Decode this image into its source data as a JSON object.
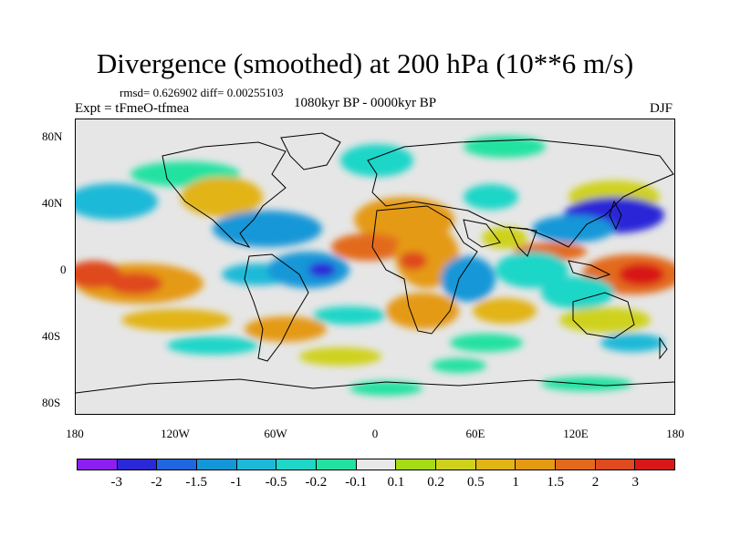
{
  "title": "Divergence (smoothed) at 200 hPa (10**6 m/s)",
  "stats": "rmsd= 0.626902 diff= 0.00255103",
  "experiment": "Expt = tFmeO-tfmea",
  "period": "1080kyr BP - 0000kyr BP",
  "season": "DJF",
  "lat_ticks": [
    "80N",
    "40N",
    "0",
    "40S",
    "80S"
  ],
  "lon_ticks": [
    "180",
    "120W",
    "60W",
    "0",
    "60E",
    "120E",
    "180"
  ],
  "colorbar": {
    "colors": [
      "#8a1ff0",
      "#2b28d8",
      "#1f66e0",
      "#1497d8",
      "#1cb9d8",
      "#1fd6c8",
      "#22e2a0",
      "#e8e8e8",
      "#a6dc14",
      "#cfd21b",
      "#e2b414",
      "#e59a14",
      "#e36a1c",
      "#df4a1e",
      "#d81818"
    ],
    "labels": [
      "-3",
      "-2",
      "-1.5",
      "-1",
      "-0.5",
      "-0.2",
      "-0.1",
      "0.1",
      "0.2",
      "0.5",
      "1",
      "1.5",
      "2",
      "3"
    ]
  }
}
